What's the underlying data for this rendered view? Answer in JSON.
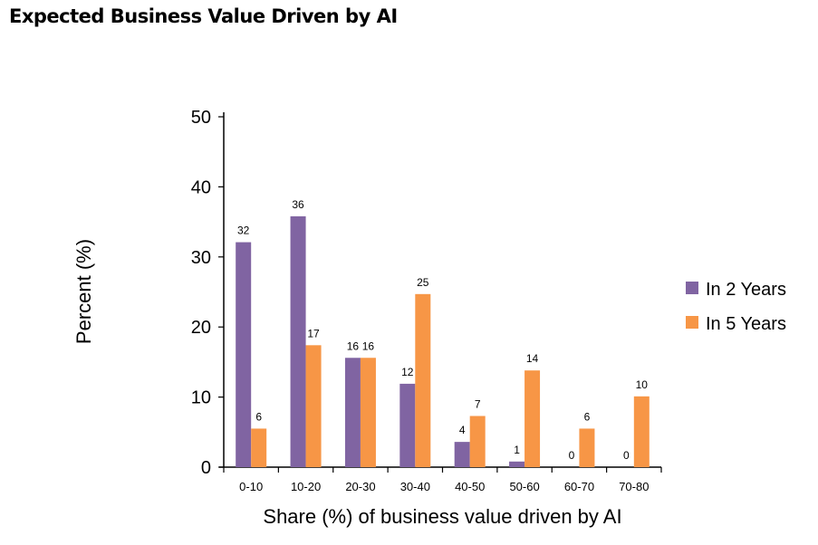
{
  "chart_data": {
    "type": "bar",
    "title": "Expected Business Value Driven by AI",
    "xlabel": "Share (%) of business value driven by AI",
    "ylabel": "Percent (%)",
    "ylim": [
      0,
      50
    ],
    "yticks": [
      0,
      10,
      20,
      30,
      40,
      50
    ],
    "categories": [
      "0-10",
      "10-20",
      "20-30",
      "30-40",
      "40-50",
      "50-60",
      "60-70",
      "70-80"
    ],
    "series": [
      {
        "name": "In 2 Years",
        "color": "#8064A2",
        "values": [
          32.1,
          35.8,
          15.6,
          11.9,
          3.6,
          0.8,
          0,
          0
        ],
        "labels": [
          "32",
          "36",
          "16",
          "12",
          "4",
          "1",
          "0",
          "0"
        ]
      },
      {
        "name": "In 5 Years",
        "color": "#F79646",
        "values": [
          5.5,
          17.4,
          15.6,
          24.7,
          7.3,
          13.8,
          5.5,
          10.1
        ],
        "labels": [
          "6",
          "17",
          "16",
          "25",
          "7",
          "14",
          "6",
          "10"
        ]
      }
    ],
    "grid": false,
    "legend": "right"
  }
}
